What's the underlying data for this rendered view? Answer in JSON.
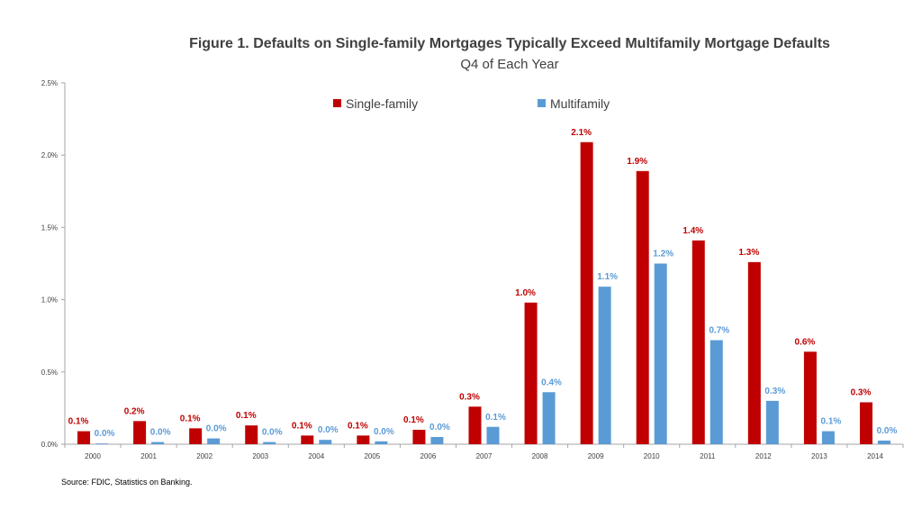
{
  "colors": {
    "single_family": "#C00000",
    "multifamily": "#5B9BD5",
    "axis": "#A6A6A6",
    "text": "#404040"
  },
  "source": "Source: FDIC, Statistics on Banking.",
  "chart_data": {
    "type": "bar",
    "title": "Figure 1.  Defaults on Single-family Mortgages Typically Exceed Multifamily Mortgage Defaults",
    "subtitle": "Q4 of Each Year",
    "xlabel": "",
    "ylabel": "",
    "ylim": [
      0,
      2.5
    ],
    "y_unit": "%",
    "yticks": [
      "0.0%",
      "0.5%",
      "1.0%",
      "1.5%",
      "2.0%",
      "2.5%"
    ],
    "ytick_values": [
      0,
      0.5,
      1.0,
      1.5,
      2.0,
      2.5
    ],
    "grid": false,
    "legend_position": "top-center",
    "categories": [
      "2000",
      "2001",
      "2002",
      "2003",
      "2004",
      "2005",
      "2006",
      "2007",
      "2008",
      "2009",
      "2010",
      "2011",
      "2012",
      "2013",
      "2014"
    ],
    "series": [
      {
        "name": "Single-family",
        "values": [
          0.09,
          0.16,
          0.11,
          0.13,
          0.06,
          0.06,
          0.1,
          0.26,
          0.98,
          2.09,
          1.89,
          1.41,
          1.26,
          0.64,
          0.29
        ],
        "labels": [
          "0.1%",
          "0.2%",
          "0.1%",
          "0.1%",
          "0.1%",
          "0.1%",
          "0.1%",
          "0.3%",
          "1.0%",
          "2.1%",
          "1.9%",
          "1.4%",
          "1.3%",
          "0.6%",
          "0.3%"
        ]
      },
      {
        "name": "Multifamily",
        "values": [
          0.005,
          0.015,
          0.04,
          0.015,
          0.03,
          0.02,
          0.05,
          0.12,
          0.36,
          1.09,
          1.25,
          0.72,
          0.3,
          0.09,
          0.025
        ],
        "labels": [
          "0.0%",
          "0.0%",
          "0.0%",
          "0.0%",
          "0.0%",
          "0.0%",
          "0.0%",
          "0.1%",
          "0.4%",
          "1.1%",
          "1.2%",
          "0.7%",
          "0.3%",
          "0.1%",
          "0.0%"
        ]
      }
    ]
  }
}
